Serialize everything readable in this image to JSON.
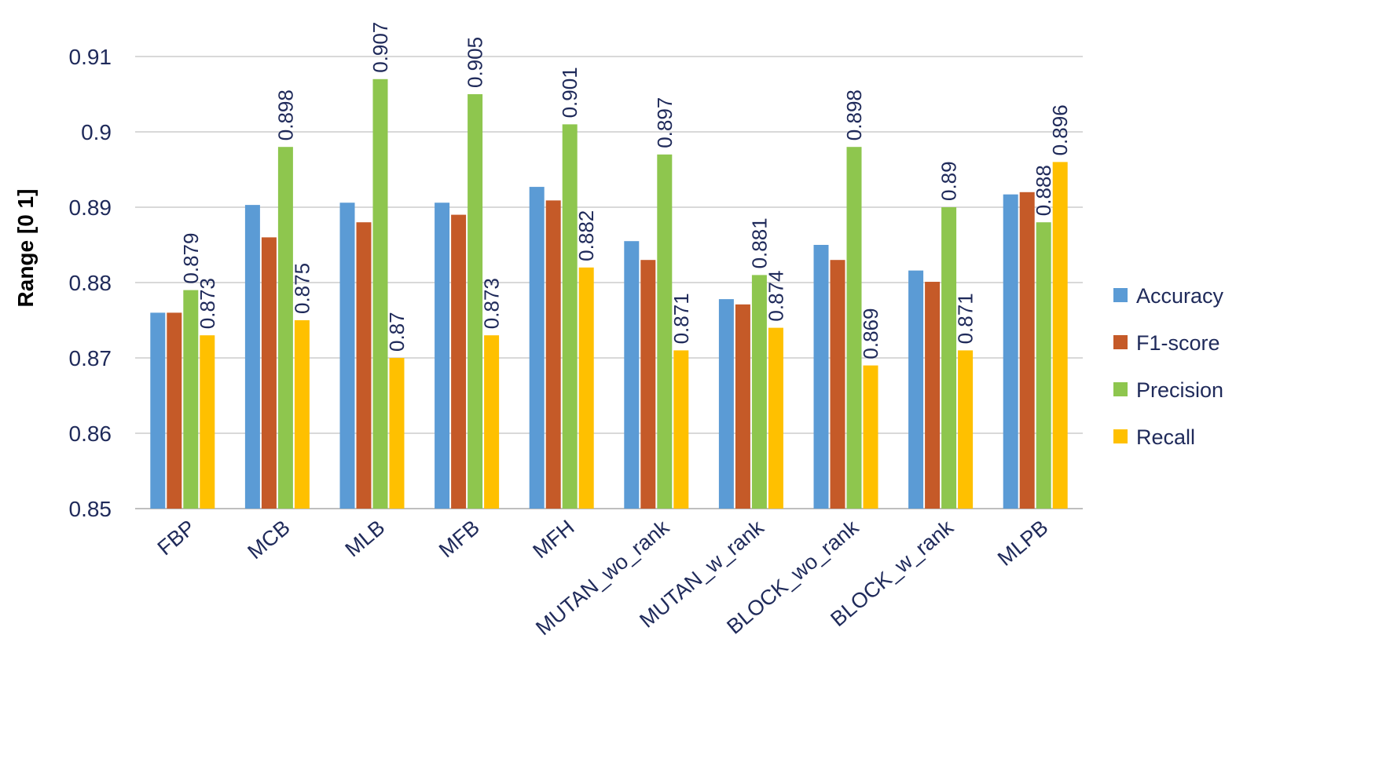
{
  "chart_data": {
    "type": "bar",
    "title": "",
    "xlabel": "",
    "ylabel": "Range [0 1]",
    "ylim": [
      0.85,
      0.91
    ],
    "yticks": [
      "0.85",
      "0.86",
      "0.87",
      "0.88",
      "0.89",
      "0.9",
      "0.91"
    ],
    "grid": true,
    "legend_position": "right",
    "categories": [
      "FBP",
      "MCB",
      "MLB",
      "MFB",
      "MFH",
      "MUTAN_wo_rank",
      "MUTAN_w_rank",
      "BLOCK_wo_rank",
      "BLOCK_w_rank",
      "MLPB"
    ],
    "series": [
      {
        "name": "Accuracy",
        "color": "#5b9bd5",
        "labeled": false,
        "values": [
          0.876,
          0.8903,
          0.8906,
          0.8906,
          0.8927,
          0.8855,
          0.8778,
          0.885,
          0.8816,
          0.8917
        ],
        "labels": []
      },
      {
        "name": "F1-score",
        "color": "#c55a28",
        "labeled": false,
        "values": [
          0.876,
          0.886,
          0.888,
          0.889,
          0.8909,
          0.883,
          0.8771,
          0.883,
          0.8801,
          0.892
        ],
        "labels": []
      },
      {
        "name": "Precision",
        "color": "#8ec64e",
        "labeled": true,
        "values": [
          0.879,
          0.898,
          0.907,
          0.905,
          0.901,
          0.897,
          0.881,
          0.898,
          0.89,
          0.888
        ],
        "labels": [
          "0.879",
          "0.898",
          "0.907",
          "0.905",
          "0.901",
          "0.897",
          "0.881",
          "0.898",
          "0.89",
          "0.888"
        ]
      },
      {
        "name": "Recall",
        "color": "#ffc000",
        "labeled": true,
        "values": [
          0.873,
          0.875,
          0.87,
          0.873,
          0.882,
          0.871,
          0.874,
          0.869,
          0.871,
          0.896
        ],
        "labels": [
          "0.873",
          "0.875",
          "0.87",
          "0.873",
          "0.882",
          "0.871",
          "0.874",
          "0.869",
          "0.871",
          "0.896"
        ]
      }
    ]
  }
}
